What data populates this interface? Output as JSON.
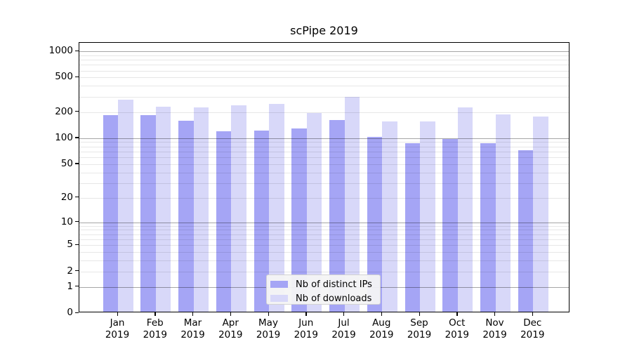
{
  "chart_data": {
    "type": "bar",
    "title": "scPipe 2019",
    "categories": [
      "Jan 2019",
      "Feb 2019",
      "Mar 2019",
      "Apr 2019",
      "May 2019",
      "Jun 2019",
      "Jul 2019",
      "Aug 2019",
      "Sep 2019",
      "Oct 2019",
      "Nov 2019",
      "Dec 2019"
    ],
    "series": [
      {
        "name": "Nb of distinct IPs",
        "color": "#a5a5f5",
        "values": [
          178,
          178,
          152,
          115,
          119,
          125,
          157,
          99,
          85,
          94,
          84,
          70
        ]
      },
      {
        "name": "Nb of downloads",
        "color": "#d8d8f9",
        "values": [
          266,
          221,
          218,
          230,
          239,
          189,
          289,
          151,
          150,
          220,
          182,
          172
        ]
      }
    ],
    "y_scale": "log10(value+1)",
    "y_ticks": [
      0,
      1,
      2,
      5,
      10,
      20,
      50,
      100,
      200,
      500,
      1000
    ],
    "ylim": [
      0,
      1250
    ],
    "xlabel": "",
    "ylabel": "",
    "grid": "horizontal, minor and major",
    "grid_major_values": [
      1,
      10,
      100,
      1000
    ],
    "legend_position": "lower center",
    "colors": {
      "grid_major": "#a6a6a6",
      "grid_minor": "#e7e7e7",
      "axis": "#000000",
      "background": "#ffffff"
    }
  }
}
